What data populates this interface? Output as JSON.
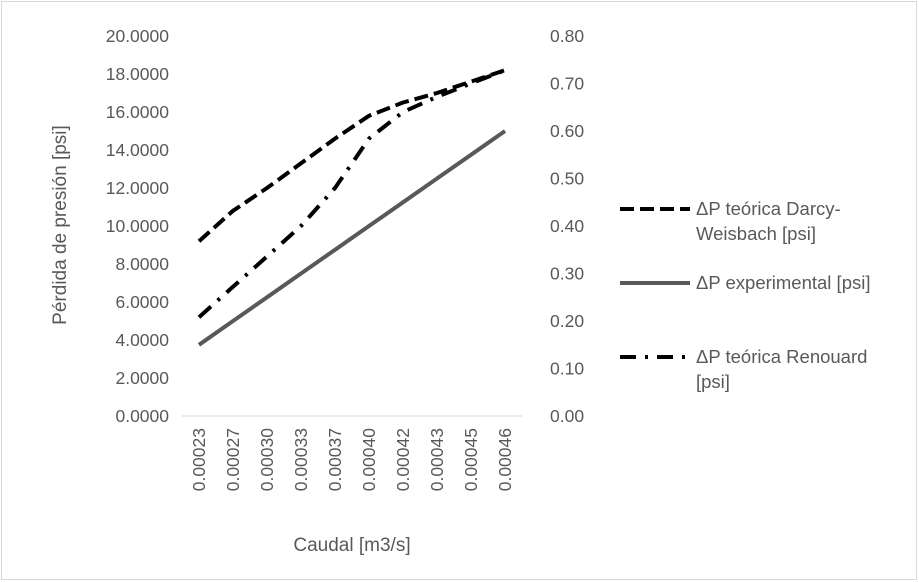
{
  "chart_data": {
    "type": "line",
    "xlabel": "Caudal [m3/s]",
    "ylabel": "Pérdida de presión [psi]",
    "categories": [
      "0.00023",
      "0.00027",
      "0.00030",
      "0.00033",
      "0.00037",
      "0.00040",
      "0.00042",
      "0.00043",
      "0.00045",
      "0.00046"
    ],
    "y_left": {
      "ticks": [
        "0.0000",
        "2.0000",
        "4.0000",
        "6.0000",
        "8.0000",
        "10.0000",
        "12.0000",
        "14.0000",
        "16.0000",
        "18.0000",
        "20.0000"
      ],
      "ylim": [
        0,
        20
      ]
    },
    "y_right": {
      "ticks": [
        "0.00",
        "0.10",
        "0.20",
        "0.30",
        "0.40",
        "0.50",
        "0.60",
        "0.70",
        "0.80"
      ],
      "ylim": [
        0,
        0.8
      ]
    },
    "grid": false,
    "legend_position": "right",
    "series": [
      {
        "name": "ΔP teórica Darcy-Weisbach [psi]",
        "legend_lines": [
          "ΔP teórica Darcy-",
          "Weisbach [psi]"
        ],
        "axis": "left",
        "style": "dash",
        "color": "#000000",
        "values": [
          9.2,
          10.8,
          12.0,
          13.3,
          14.6,
          15.8,
          16.5,
          17.0,
          17.6,
          18.2
        ]
      },
      {
        "name": "ΔP experimental [psi]",
        "legend_lines": [
          "ΔP experimental [psi]"
        ],
        "axis": "left",
        "style": "solid",
        "color": "#595959",
        "values": [
          3.75,
          5.0,
          6.25,
          7.5,
          8.75,
          10.0,
          11.25,
          12.5,
          13.75,
          15.0
        ]
      },
      {
        "name": "ΔP teórica Renouard [psi]",
        "legend_lines": [
          "ΔP teórica Renouard",
          "[psi]"
        ],
        "axis": "left",
        "style": "dashdot",
        "color": "#000000",
        "values": [
          5.2,
          6.8,
          8.4,
          10.0,
          12.0,
          14.6,
          16.0,
          16.8,
          17.5,
          18.2
        ]
      }
    ]
  }
}
